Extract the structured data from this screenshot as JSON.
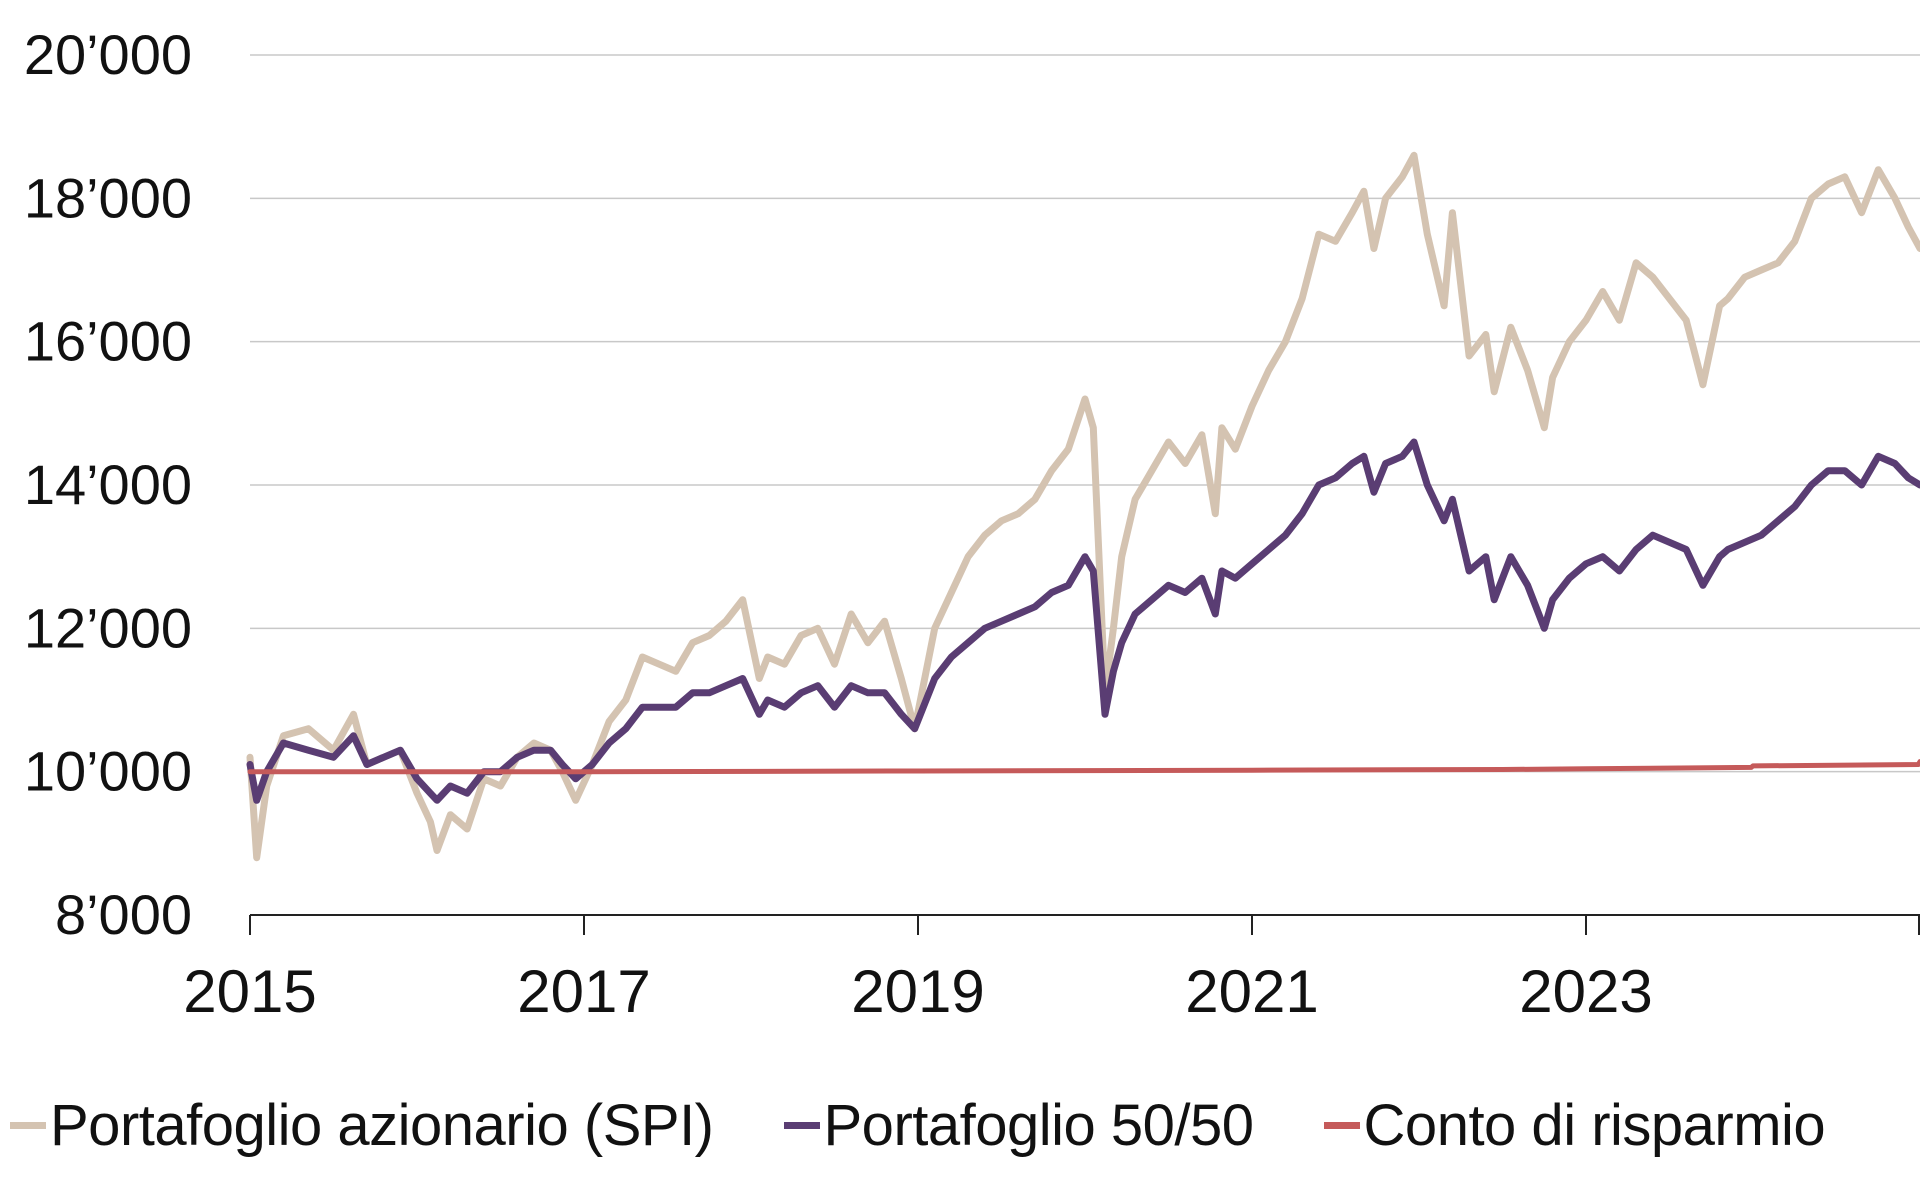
{
  "chart_data": {
    "type": "line",
    "title": "",
    "xlabel": "",
    "ylabel": "",
    "xlim": [
      2015.0,
      2025.0
    ],
    "ylim": [
      8000,
      20000
    ],
    "x_ticks": [
      2015,
      2017,
      2019,
      2021,
      2023
    ],
    "x_tick_labels": [
      "2015",
      "2017",
      "2019",
      "2021",
      "2023"
    ],
    "y_ticks": [
      8000,
      10000,
      12000,
      14000,
      16000,
      18000,
      20000
    ],
    "y_tick_labels": [
      "8’000",
      "10’000",
      "12’000",
      "14’000",
      "16’000",
      "18’000",
      "20’000"
    ],
    "grid": "horizontal",
    "legend_position": "bottom",
    "series": [
      {
        "name": "Portafoglio azionario (SPI)",
        "color": "#d4c3b1",
        "x": [
          2015.0,
          2015.04,
          2015.1,
          2015.2,
          2015.35,
          2015.5,
          2015.62,
          2015.7,
          2015.8,
          2015.9,
          2016.0,
          2016.08,
          2016.12,
          2016.2,
          2016.3,
          2016.4,
          2016.5,
          2016.6,
          2016.7,
          2016.8,
          2016.87,
          2016.95,
          2017.05,
          2017.15,
          2017.25,
          2017.35,
          2017.45,
          2017.55,
          2017.65,
          2017.75,
          2017.85,
          2017.95,
          2018.05,
          2018.1,
          2018.2,
          2018.3,
          2018.4,
          2018.5,
          2018.6,
          2018.7,
          2018.8,
          2018.9,
          2018.98,
          2019.1,
          2019.2,
          2019.3,
          2019.4,
          2019.5,
          2019.6,
          2019.7,
          2019.8,
          2019.9,
          2020.0,
          2020.05,
          2020.12,
          2020.17,
          2020.22,
          2020.3,
          2020.4,
          2020.5,
          2020.6,
          2020.7,
          2020.78,
          2020.82,
          2020.9,
          2021.0,
          2021.1,
          2021.2,
          2021.3,
          2021.4,
          2021.5,
          2021.6,
          2021.67,
          2021.73,
          2021.8,
          2021.9,
          2021.97,
          2022.05,
          2022.15,
          2022.2,
          2022.3,
          2022.4,
          2022.45,
          2022.55,
          2022.65,
          2022.75,
          2022.8,
          2022.9,
          2023.0,
          2023.1,
          2023.2,
          2023.3,
          2023.4,
          2023.5,
          2023.6,
          2023.7,
          2023.8,
          2023.85,
          2023.95,
          2024.05,
          2024.15,
          2024.25,
          2024.35,
          2024.45,
          2024.55,
          2024.65,
          2024.75,
          2024.85,
          2024.93,
          2025.0
        ],
        "y": [
          10200,
          8800,
          9800,
          10500,
          10600,
          10300,
          10800,
          10100,
          10200,
          10300,
          9700,
          9300,
          8900,
          9400,
          9200,
          9900,
          9800,
          10200,
          10400,
          10300,
          10000,
          9600,
          10100,
          10700,
          11000,
          11600,
          11500,
          11400,
          11800,
          11900,
          12100,
          12400,
          11300,
          11600,
          11500,
          11900,
          12000,
          11500,
          12200,
          11800,
          12100,
          11300,
          10600,
          12000,
          12500,
          13000,
          13300,
          13500,
          13600,
          13800,
          14200,
          14500,
          15200,
          14800,
          11100,
          12000,
          13000,
          13800,
          14200,
          14600,
          14300,
          14700,
          13600,
          14800,
          14500,
          15100,
          15600,
          16000,
          16600,
          17500,
          17400,
          17800,
          18100,
          17300,
          18000,
          18300,
          18600,
          17500,
          16500,
          17800,
          15800,
          16100,
          15300,
          16200,
          15600,
          14800,
          15500,
          16000,
          16300,
          16700,
          16300,
          17100,
          16900,
          16600,
          16300,
          15400,
          16500,
          16600,
          16900,
          17000,
          17100,
          17400,
          18000,
          18200,
          18300,
          17800,
          18400,
          18000,
          17600,
          17300
        ]
      },
      {
        "name": "Portafoglio 50/50",
        "color": "#5a3d73",
        "x": [
          2015.0,
          2015.04,
          2015.1,
          2015.2,
          2015.35,
          2015.5,
          2015.62,
          2015.7,
          2015.8,
          2015.9,
          2016.0,
          2016.08,
          2016.12,
          2016.2,
          2016.3,
          2016.4,
          2016.5,
          2016.6,
          2016.7,
          2016.8,
          2016.87,
          2016.95,
          2017.05,
          2017.15,
          2017.25,
          2017.35,
          2017.45,
          2017.55,
          2017.65,
          2017.75,
          2017.85,
          2017.95,
          2018.05,
          2018.1,
          2018.2,
          2018.3,
          2018.4,
          2018.5,
          2018.6,
          2018.7,
          2018.8,
          2018.9,
          2018.98,
          2019.1,
          2019.2,
          2019.3,
          2019.4,
          2019.5,
          2019.6,
          2019.7,
          2019.8,
          2019.9,
          2020.0,
          2020.05,
          2020.12,
          2020.17,
          2020.22,
          2020.3,
          2020.4,
          2020.5,
          2020.6,
          2020.7,
          2020.78,
          2020.82,
          2020.9,
          2021.0,
          2021.1,
          2021.2,
          2021.3,
          2021.4,
          2021.5,
          2021.6,
          2021.67,
          2021.73,
          2021.8,
          2021.9,
          2021.97,
          2022.05,
          2022.15,
          2022.2,
          2022.3,
          2022.4,
          2022.45,
          2022.55,
          2022.65,
          2022.75,
          2022.8,
          2022.9,
          2023.0,
          2023.1,
          2023.2,
          2023.3,
          2023.4,
          2023.5,
          2023.6,
          2023.7,
          2023.8,
          2023.85,
          2023.95,
          2024.05,
          2024.15,
          2024.25,
          2024.35,
          2024.45,
          2024.55,
          2024.65,
          2024.75,
          2024.85,
          2024.93,
          2025.0
        ],
        "y": [
          10100,
          9600,
          10000,
          10400,
          10300,
          10200,
          10500,
          10100,
          10200,
          10300,
          9900,
          9700,
          9600,
          9800,
          9700,
          10000,
          10000,
          10200,
          10300,
          10300,
          10100,
          9900,
          10100,
          10400,
          10600,
          10900,
          10900,
          10900,
          11100,
          11100,
          11200,
          11300,
          10800,
          11000,
          10900,
          11100,
          11200,
          10900,
          11200,
          11100,
          11100,
          10800,
          10600,
          11300,
          11600,
          11800,
          12000,
          12100,
          12200,
          12300,
          12500,
          12600,
          13000,
          12800,
          10800,
          11400,
          11800,
          12200,
          12400,
          12600,
          12500,
          12700,
          12200,
          12800,
          12700,
          12900,
          13100,
          13300,
          13600,
          14000,
          14100,
          14300,
          14400,
          13900,
          14300,
          14400,
          14600,
          14000,
          13500,
          13800,
          12800,
          13000,
          12400,
          13000,
          12600,
          12000,
          12400,
          12700,
          12900,
          13000,
          12800,
          13100,
          13300,
          13200,
          13100,
          12600,
          13000,
          13100,
          13200,
          13300,
          13500,
          13700,
          14000,
          14200,
          14200,
          14000,
          14400,
          14300,
          14100,
          14000
        ]
      },
      {
        "name": "Conto di risparmio",
        "color": "#c55a5a",
        "x": [
          2015.0,
          2017.0,
          2019.0,
          2021.0,
          2022.5,
          2023.0,
          2023.99,
          2024.0,
          2024.99,
          2025.0
        ],
        "y": [
          10000,
          10000,
          10010,
          10020,
          10030,
          10040,
          10060,
          10080,
          10100,
          10140
        ]
      }
    ]
  }
}
